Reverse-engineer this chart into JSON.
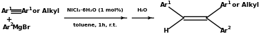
{
  "figsize": [
    3.78,
    0.53
  ],
  "dpi": 100,
  "bg_color": "#ffffff",
  "text_color": "#000000",
  "fs": 6.5,
  "fs_super": 4.8,
  "fs_reagent": 5.2,
  "reagent_above": "NiCl₂·6H₂O (1 mol%)",
  "reagent_below": "toluene, 1h, r.t.",
  "reagent2": "H₂O"
}
